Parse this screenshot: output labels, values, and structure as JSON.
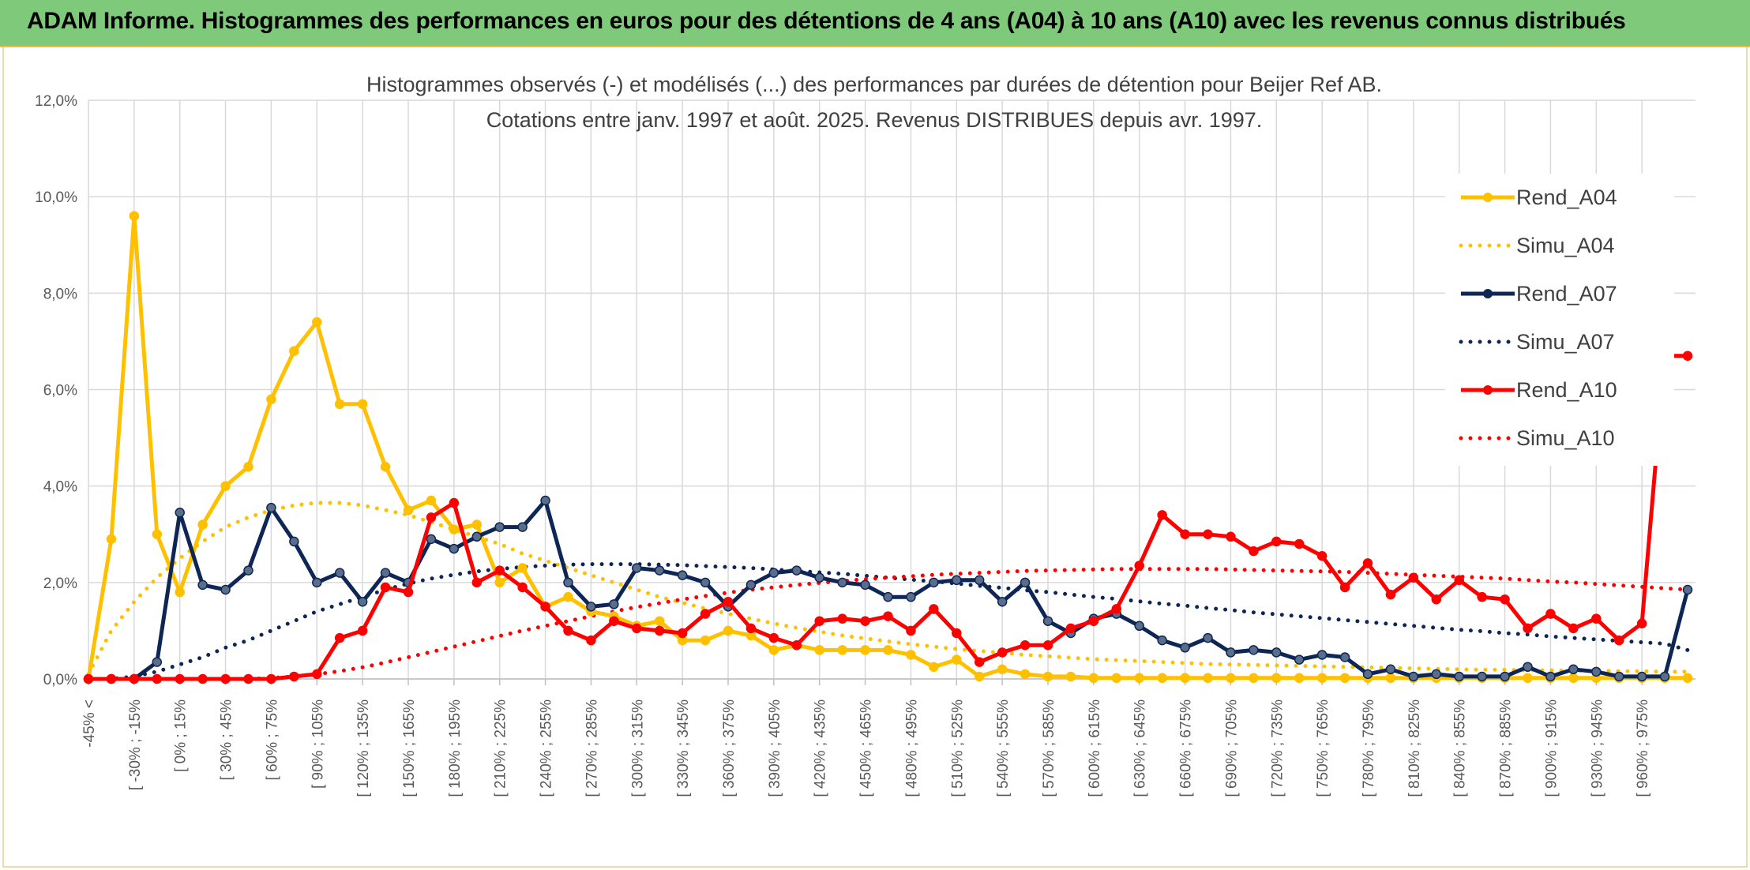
{
  "banner": {
    "title": "ADAM Informe. Histogrammes des performances en euros pour des détentions de 4 ans (A04) à 10 ans (A10) avec les revenus connus distribués"
  },
  "chart_data": {
    "type": "line",
    "title": "Histogrammes observés (-) et modélisés (...) des performances par durées de détention pour Beijer Ref AB.",
    "subtitle": "Cotations entre janv. 1997 et août. 2025. Revenus DISTRIBUES depuis avr. 1997.",
    "xlabel": "",
    "ylabel": "",
    "ylim": [
      0,
      12
    ],
    "yticks": [
      "0,0%",
      "2,0%",
      "4,0%",
      "6,0%",
      "8,0%",
      "10,0%",
      "12,0%"
    ],
    "grid": true,
    "legend_position": "right",
    "x_tick_labels": [
      "-45% <",
      "[ -30% ; -15%",
      "[ 0% ; 15%",
      "[ 30% ; 45%",
      "[ 60% ; 75%",
      "[ 90% ; 105%",
      "[ 120% ; 135%",
      "[ 150% ; 165%",
      "[ 180% ; 195%",
      "[ 210% ; 225%",
      "[ 240% ; 255%",
      "[ 270% ; 285%",
      "[ 300% ; 315%",
      "[ 330% ; 345%",
      "[ 360% ; 375%",
      "[ 390% ; 405%",
      "[ 420% ; 435%",
      "[ 450% ; 465%",
      "[ 480% ; 495%",
      "[ 510% ; 525%",
      "[ 540% ; 555%",
      "[ 570% ; 585%",
      "[ 600% ; 615%",
      "[ 630% ; 645%",
      "[ 660% ; 675%",
      "[ 690% ; 705%",
      "[ 720% ; 735%",
      "[ 750% ; 765%",
      "[ 780% ; 795%",
      "[ 810% ; 825%",
      "[ 840% ; 855%",
      "[ 870% ; 885%",
      "[ 900% ; 915%",
      "[ 930% ; 945%",
      "[ 960% ; 975%"
    ],
    "series": [
      {
        "name": "Rend_A04",
        "style": "solid",
        "color": "#ffc000",
        "markers": true,
        "values": [
          0.0,
          2.9,
          9.6,
          3.0,
          1.8,
          3.2,
          4.0,
          4.4,
          5.8,
          6.8,
          7.4,
          5.7,
          5.7,
          4.4,
          3.5,
          3.7,
          3.1,
          3.2,
          2.0,
          2.3,
          1.5,
          1.7,
          1.4,
          1.3,
          1.1,
          1.2,
          0.8,
          0.8,
          1.0,
          0.9,
          0.6,
          0.7,
          0.6,
          0.6,
          0.6,
          0.6,
          0.5,
          0.25,
          0.4,
          0.05,
          0.2,
          0.1,
          0.05,
          0.05,
          0.02,
          0.02,
          0.02,
          0.02,
          0.02,
          0.02,
          0.02,
          0.02,
          0.02,
          0.02,
          0.02,
          0.02,
          0.02,
          0.02,
          0.02,
          0.02,
          0.02,
          0.02,
          0.02,
          0.02,
          0.02,
          0.02,
          0.02,
          0.02,
          0.02,
          0.02,
          0.02
        ]
      },
      {
        "name": "Simu_A04",
        "style": "dotted",
        "color": "#ffc000",
        "markers": false,
        "values": [
          0.1,
          1.0,
          1.6,
          2.1,
          2.5,
          2.85,
          3.15,
          3.35,
          3.5,
          3.6,
          3.65,
          3.65,
          3.6,
          3.5,
          3.4,
          3.25,
          3.1,
          2.95,
          2.8,
          2.6,
          2.45,
          2.3,
          2.15,
          2.0,
          1.85,
          1.7,
          1.58,
          1.46,
          1.35,
          1.25,
          1.15,
          1.06,
          0.98,
          0.9,
          0.84,
          0.78,
          0.72,
          0.67,
          0.62,
          0.58,
          0.54,
          0.5,
          0.47,
          0.44,
          0.41,
          0.39,
          0.37,
          0.35,
          0.33,
          0.31,
          0.3,
          0.29,
          0.28,
          0.27,
          0.26,
          0.25,
          0.24,
          0.23,
          0.22,
          0.21,
          0.2,
          0.19,
          0.19,
          0.18,
          0.18,
          0.17,
          0.17,
          0.16,
          0.16,
          0.15,
          0.15
        ]
      },
      {
        "name": "Rend_A07",
        "style": "solid",
        "color": "#0d2656",
        "markers": true,
        "values": [
          0.0,
          0.0,
          0.0,
          0.35,
          3.45,
          1.95,
          1.85,
          2.25,
          3.55,
          2.85,
          2.0,
          2.2,
          1.6,
          2.2,
          2.0,
          2.9,
          2.7,
          2.95,
          3.15,
          3.15,
          3.7,
          2.0,
          1.5,
          1.55,
          2.3,
          2.25,
          2.15,
          2.0,
          1.5,
          1.95,
          2.2,
          2.25,
          2.1,
          2.0,
          1.95,
          1.7,
          1.7,
          2.0,
          2.05,
          2.05,
          1.6,
          2.0,
          1.2,
          0.95,
          1.25,
          1.35,
          1.1,
          0.8,
          0.65,
          0.85,
          0.55,
          0.6,
          0.55,
          0.4,
          0.5,
          0.45,
          0.1,
          0.2,
          0.05,
          0.1,
          0.05,
          0.05,
          0.05,
          0.25,
          0.05,
          0.2,
          0.15,
          0.05,
          0.05,
          0.05,
          1.85
        ]
      },
      {
        "name": "Simu_A07",
        "style": "dotted",
        "color": "#0d2656",
        "markers": false,
        "values": [
          0.0,
          0.0,
          0.05,
          0.15,
          0.3,
          0.45,
          0.65,
          0.8,
          1.0,
          1.2,
          1.4,
          1.55,
          1.7,
          1.85,
          1.98,
          2.08,
          2.16,
          2.23,
          2.28,
          2.32,
          2.35,
          2.37,
          2.38,
          2.38,
          2.38,
          2.37,
          2.36,
          2.34,
          2.32,
          2.3,
          2.27,
          2.24,
          2.21,
          2.18,
          2.14,
          2.1,
          2.06,
          2.02,
          1.98,
          1.93,
          1.89,
          1.84,
          1.8,
          1.75,
          1.7,
          1.66,
          1.61,
          1.56,
          1.52,
          1.47,
          1.43,
          1.38,
          1.34,
          1.3,
          1.26,
          1.22,
          1.18,
          1.14,
          1.1,
          1.06,
          1.02,
          0.99,
          0.95,
          0.92,
          0.88,
          0.85,
          0.82,
          0.79,
          0.76,
          0.73,
          0.6
        ]
      },
      {
        "name": "Rend_A10",
        "style": "solid",
        "color": "#ff0000",
        "markers": true,
        "values": [
          0.0,
          0.0,
          0.0,
          0.0,
          0.0,
          0.0,
          0.0,
          0.0,
          0.0,
          0.05,
          0.1,
          0.85,
          1.0,
          1.9,
          1.8,
          3.35,
          3.65,
          2.0,
          2.25,
          1.9,
          1.5,
          1.0,
          0.8,
          1.2,
          1.05,
          1.0,
          0.95,
          1.35,
          1.6,
          1.05,
          0.85,
          0.7,
          1.2,
          1.25,
          1.2,
          1.3,
          1.0,
          1.45,
          0.95,
          0.35,
          0.55,
          0.7,
          0.7,
          1.05,
          1.2,
          1.45,
          2.35,
          3.4,
          3.0,
          3.0,
          2.95,
          2.65,
          2.85,
          2.8,
          2.55,
          1.9,
          2.4,
          1.75,
          2.1,
          1.65,
          2.05,
          1.7,
          1.65,
          1.05,
          1.35,
          1.05,
          1.25,
          0.8,
          1.15,
          6.7,
          6.7
        ]
      },
      {
        "name": "Simu_A10",
        "style": "dotted",
        "color": "#ff0000",
        "markers": false,
        "values": [
          0.0,
          0.0,
          0.0,
          0.0,
          0.0,
          0.0,
          0.0,
          0.0,
          0.02,
          0.05,
          0.1,
          0.16,
          0.24,
          0.34,
          0.45,
          0.56,
          0.67,
          0.78,
          0.89,
          1.0,
          1.1,
          1.2,
          1.3,
          1.4,
          1.49,
          1.57,
          1.65,
          1.72,
          1.79,
          1.85,
          1.9,
          1.95,
          1.99,
          2.03,
          2.07,
          2.1,
          2.13,
          2.16,
          2.18,
          2.2,
          2.22,
          2.24,
          2.25,
          2.26,
          2.27,
          2.28,
          2.28,
          2.28,
          2.28,
          2.28,
          2.27,
          2.26,
          2.25,
          2.24,
          2.23,
          2.22,
          2.2,
          2.18,
          2.16,
          2.14,
          2.12,
          2.1,
          2.08,
          2.05,
          2.02,
          2.0,
          1.97,
          1.94,
          1.91,
          1.88,
          1.85
        ]
      }
    ],
    "legend": [
      "Rend_A04",
      "Simu_A04",
      "Rend_A07",
      "Simu_A07",
      "Rend_A10",
      "Simu_A10"
    ]
  }
}
